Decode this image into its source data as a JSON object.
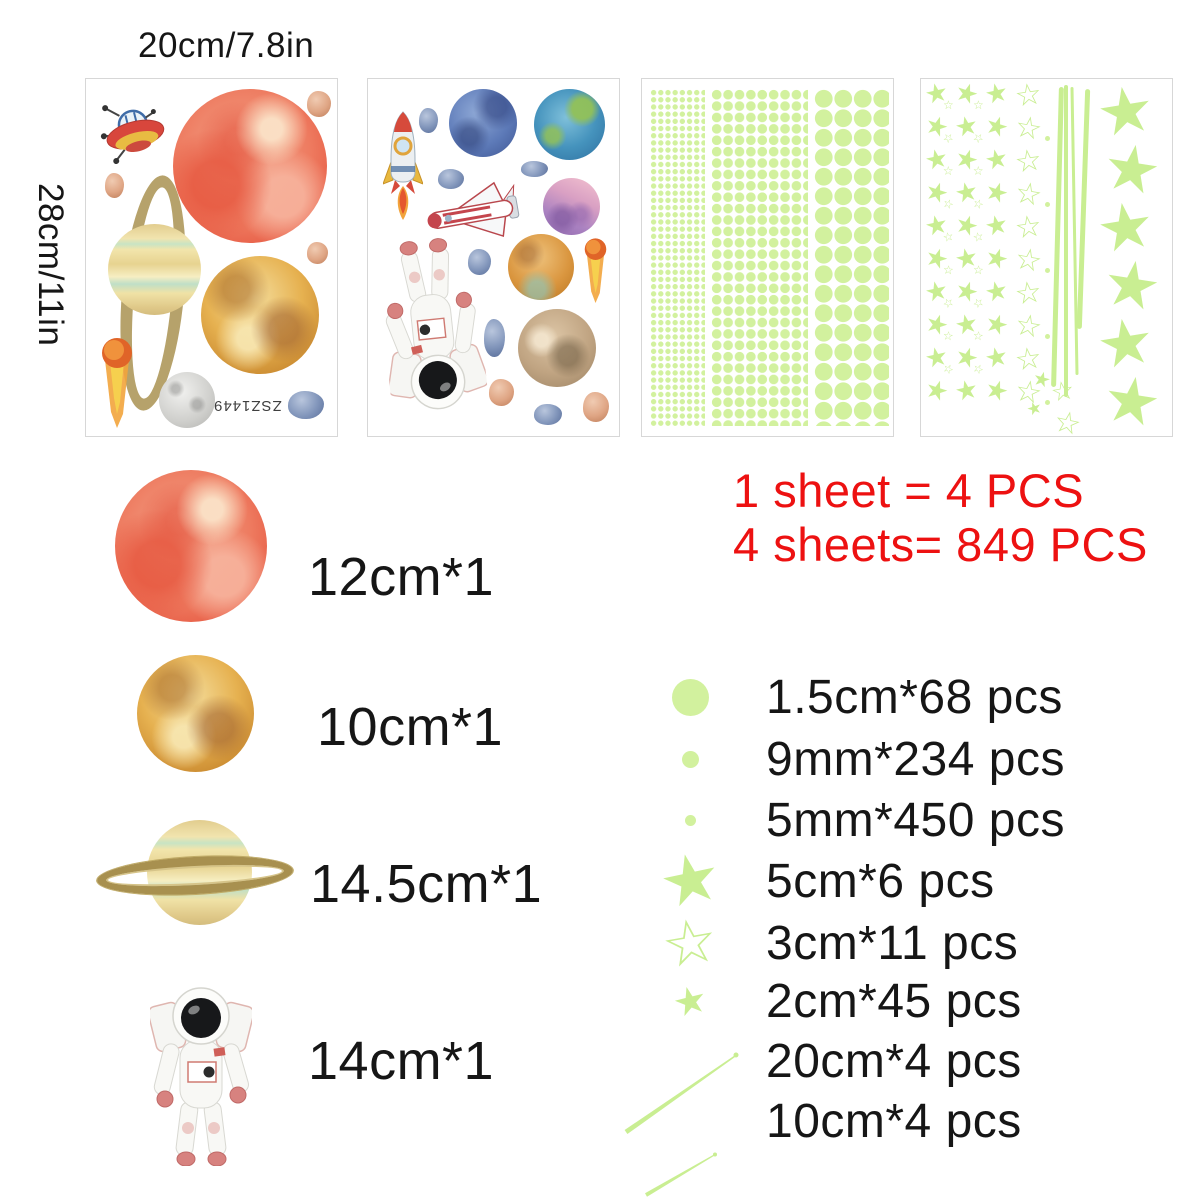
{
  "dimensions": {
    "width_label": "20cm/7.8in",
    "height_label": "28cm/11in"
  },
  "sheet_code": "ZSZ1449",
  "counts": {
    "line1": "1 sheet = 4 PCS",
    "line2": "4 sheets= 849 PCS"
  },
  "items": [
    {
      "id": "red-planet",
      "label": "12cm*1"
    },
    {
      "id": "orange-planet",
      "label": "10cm*1"
    },
    {
      "id": "saturn",
      "label": "14.5cm*1"
    },
    {
      "id": "astronaut",
      "label": "14cm*1"
    }
  ],
  "legend": [
    {
      "icon": "dot-large-icon",
      "label": "1.5cm*68 pcs"
    },
    {
      "icon": "dot-medium-icon",
      "label": "9mm*234 pcs"
    },
    {
      "icon": "dot-small-icon",
      "label": "5mm*450 pcs"
    },
    {
      "icon": "star-filled-large-icon",
      "label": "5cm*6 pcs"
    },
    {
      "icon": "star-outline-icon",
      "label": "3cm*11 pcs"
    },
    {
      "icon": "star-filled-small-icon",
      "label": "2cm*45 pcs"
    },
    {
      "icon": "meteor-line-long-icon",
      "label": "20cm*4 pcs"
    },
    {
      "icon": "meteor-line-short-icon",
      "label": "10cm*4 pcs"
    }
  ],
  "icons": {
    "star_filled": "★",
    "star_outline": "☆"
  },
  "colors": {
    "glow_green": "#d2f19e",
    "accent_red": "#ed1111"
  }
}
